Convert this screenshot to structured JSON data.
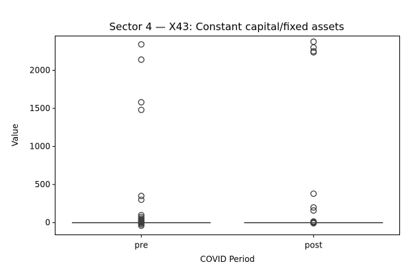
{
  "chart_data": {
    "type": "box",
    "title": "Sector 4 — X43: Constant capital/fixed assets",
    "xlabel": "COVID Period",
    "ylabel": "Value",
    "ylim": [
      -160,
      2450
    ],
    "yticks": [
      0,
      500,
      1000,
      1500,
      2000
    ],
    "grid": false,
    "legend": "none",
    "categories": [
      "pre",
      "post"
    ],
    "boxes": [
      {
        "category": "pre",
        "whisker_low": 0,
        "q1": 0,
        "median": 0,
        "q3": 0,
        "whisker_high": 0,
        "outliers": [
          2340,
          2140,
          1580,
          1480,
          350,
          300,
          100,
          75,
          55,
          40,
          25,
          15,
          5,
          -5,
          -20,
          -40
        ]
      },
      {
        "category": "post",
        "whisker_low": 0,
        "q1": 0,
        "median": 0,
        "q3": 0,
        "whisker_high": 0,
        "outliers": [
          2375,
          2300,
          2250,
          2235,
          380,
          200,
          160,
          15,
          8,
          2,
          -3,
          -8
        ]
      }
    ],
    "colors": {
      "box_line": "#3f3f3f",
      "outlier_edge": "#3f3f3f",
      "axis": "#000000"
    }
  }
}
